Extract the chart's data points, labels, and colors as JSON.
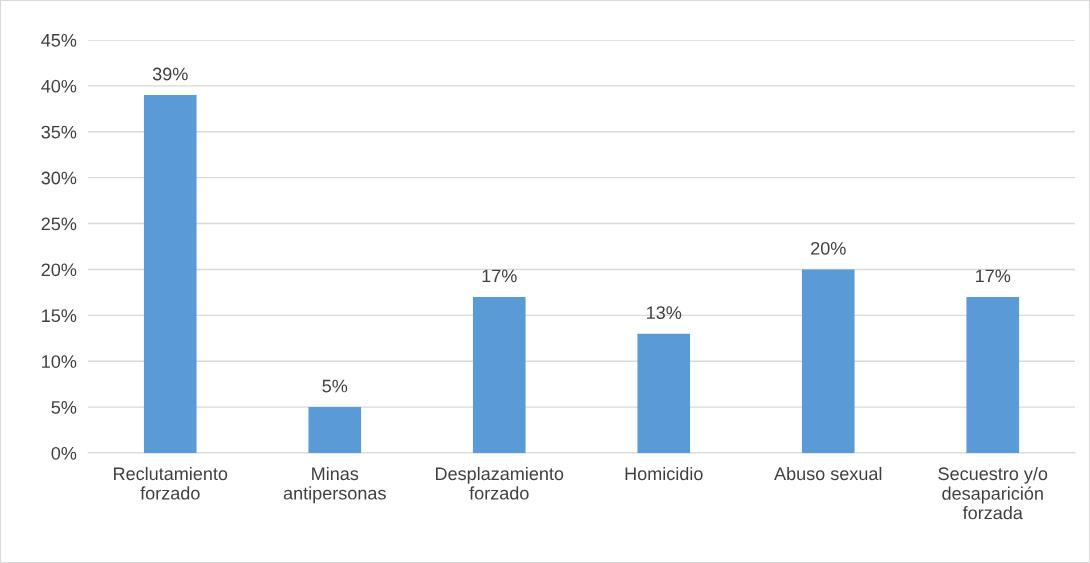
{
  "chart_data": {
    "type": "bar",
    "categories": [
      "Reclutamiento\nforzado",
      "Minas\nantipersonas",
      "Desplazamiento\nforzado",
      "Homicidio",
      "Abuso sexual",
      "Secuestro y/o\ndesaparición\nforzada"
    ],
    "values": [
      39,
      5,
      17,
      13,
      20,
      17
    ],
    "value_labels": [
      "39%",
      "5%",
      "17%",
      "13%",
      "20%",
      "17%"
    ],
    "color": "#5b9bd5",
    "ylim": [
      0,
      45
    ],
    "yticks": [
      {
        "value": 0,
        "label": "0%"
      },
      {
        "value": 5,
        "label": "5%"
      },
      {
        "value": 10,
        "label": "10%"
      },
      {
        "value": 15,
        "label": "15%"
      },
      {
        "value": 20,
        "label": "20%"
      },
      {
        "value": 25,
        "label": "25%"
      },
      {
        "value": 30,
        "label": "30%"
      },
      {
        "value": 35,
        "label": "35%"
      },
      {
        "value": 40,
        "label": "40%"
      },
      {
        "value": 45,
        "label": "45%"
      }
    ],
    "grid": "y"
  }
}
